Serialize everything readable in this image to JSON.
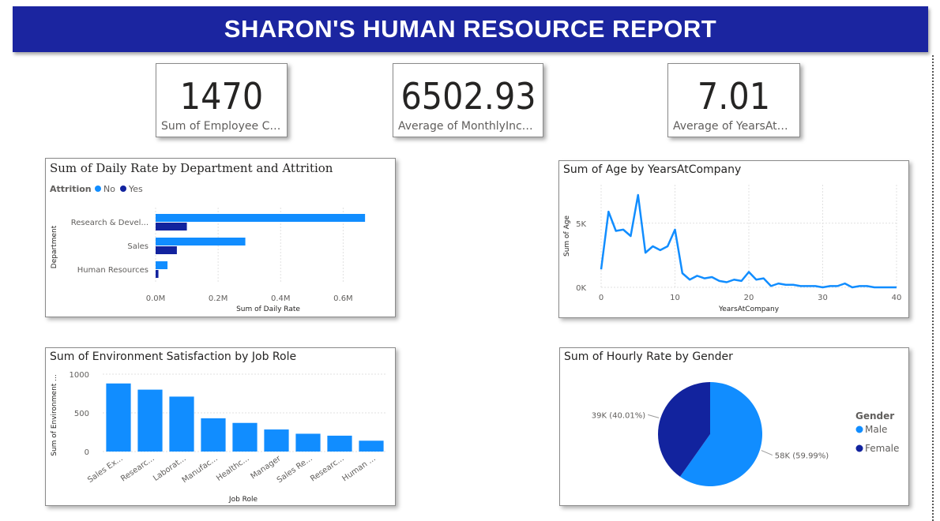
{
  "header": {
    "title": "SHARON'S HUMAN RESOURCE REPORT"
  },
  "colors": {
    "header_bg": "#1b25a0",
    "primary": "#118dff",
    "secondary": "#12239e"
  },
  "kpis": [
    {
      "value": "1470",
      "label": "Sum of Employee Cou..."
    },
    {
      "value": "6502.93",
      "label": "Average of MonthlyIncome"
    },
    {
      "value": "7.01",
      "label": "Average of YearsAtCo..."
    }
  ],
  "chart_data": [
    {
      "type": "bar",
      "orientation": "horizontal",
      "title": "Sum of Daily Rate by Department and Attrition",
      "legend_title": "Attrition",
      "legend_position": "top-left",
      "categories": [
        "Research & Devel...",
        "Sales",
        "Human Resources"
      ],
      "series": [
        {
          "name": "No",
          "color": "#118dff",
          "values": [
            670000,
            287000,
            38000
          ]
        },
        {
          "name": "Yes",
          "color": "#12239e",
          "values": [
            100000,
            68000,
            9000
          ]
        }
      ],
      "xlabel": "Sum of Daily Rate",
      "ylabel": "Department",
      "xticks": [
        "0.0M",
        "0.2M",
        "0.4M",
        "0.6M"
      ],
      "xlim": [
        0,
        700000
      ],
      "grid": true
    },
    {
      "type": "line",
      "title": "Sum of Age by YearsAtCompany",
      "xlabel": "YearsAtCompany",
      "ylabel": "Sum of Age",
      "xticks": [
        "0",
        "10",
        "20",
        "30",
        "40"
      ],
      "yticks": [
        "0K",
        "5K"
      ],
      "xlim": [
        0,
        40
      ],
      "ylim": [
        0,
        8000
      ],
      "x": [
        0,
        1,
        2,
        3,
        4,
        5,
        6,
        7,
        8,
        9,
        10,
        11,
        12,
        13,
        14,
        15,
        16,
        17,
        18,
        19,
        20,
        21,
        22,
        23,
        24,
        25,
        26,
        27,
        28,
        29,
        30,
        31,
        32,
        33,
        34,
        35,
        36,
        37,
        38,
        39,
        40
      ],
      "y": [
        1400,
        5900,
        4400,
        4500,
        4000,
        7200,
        2700,
        3200,
        2900,
        3200,
        4500,
        1100,
        600,
        900,
        700,
        800,
        500,
        400,
        600,
        500,
        1200,
        600,
        700,
        100,
        300,
        200,
        200,
        100,
        100,
        100,
        0,
        100,
        100,
        300,
        0,
        100,
        100,
        0,
        0,
        0,
        0
      ],
      "color": "#118dff",
      "grid": true
    },
    {
      "type": "bar",
      "title": "Sum of Environment Satisfaction by Job Role",
      "xlabel": "Job Role",
      "ylabel": "Sum of Environment ...",
      "categories": [
        "Sales Ex...",
        "Researc...",
        "Laborat...",
        "Manufac...",
        "Healthc...",
        "Manager",
        "Sales Re...",
        "Researc...",
        "Human ..."
      ],
      "values": [
        880,
        800,
        710,
        430,
        370,
        285,
        230,
        205,
        140
      ],
      "yticks": [
        "0",
        "500",
        "1000"
      ],
      "ylim": [
        0,
        1000
      ],
      "color": "#118dff",
      "grid": true
    },
    {
      "type": "pie",
      "title": "Sum of Hourly Rate by Gender",
      "legend_title": "Gender",
      "legend_position": "right",
      "slices": [
        {
          "name": "Male",
          "value": 58,
          "label": "58K (59.99%)",
          "color": "#118dff"
        },
        {
          "name": "Female",
          "value": 39,
          "label": "39K (40.01%)",
          "color": "#12239e"
        }
      ]
    }
  ]
}
